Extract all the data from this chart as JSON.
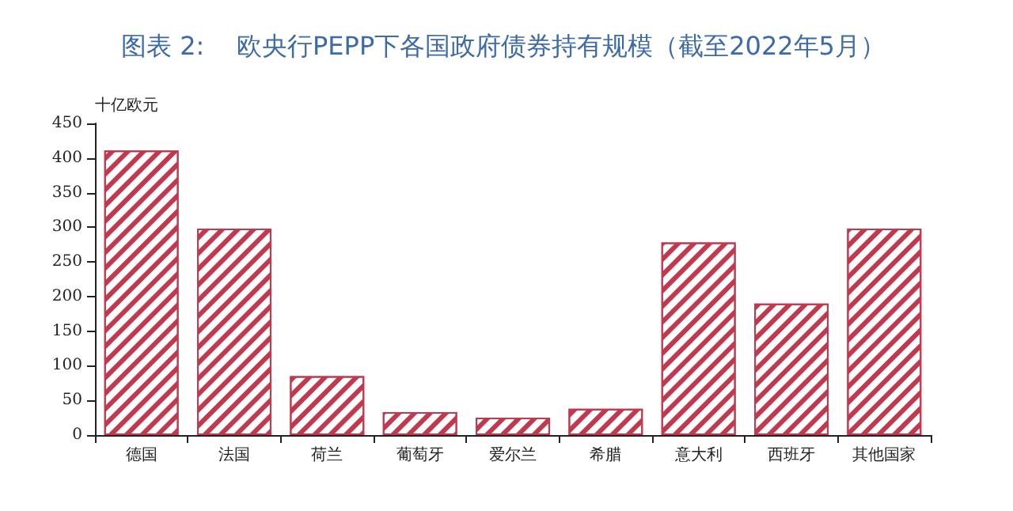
{
  "chart_data": {
    "type": "bar",
    "title": "图表 2:    欧央行PEPP下各国政府债券持有规模（截至2022年5月）",
    "ylabel": "十亿欧元",
    "categories": [
      "德国",
      "法国",
      "荷兰",
      "葡萄牙",
      "爱尔兰",
      "希腊",
      "意大利",
      "西班牙",
      "其他国家"
    ],
    "values": [
      411,
      298,
      85,
      33,
      25,
      38,
      278,
      190,
      298
    ],
    "color": "#c0394f",
    "ylim": [
      0,
      450
    ],
    "yticks": [
      0,
      50,
      100,
      150,
      200,
      250,
      300,
      350,
      400,
      450
    ]
  }
}
